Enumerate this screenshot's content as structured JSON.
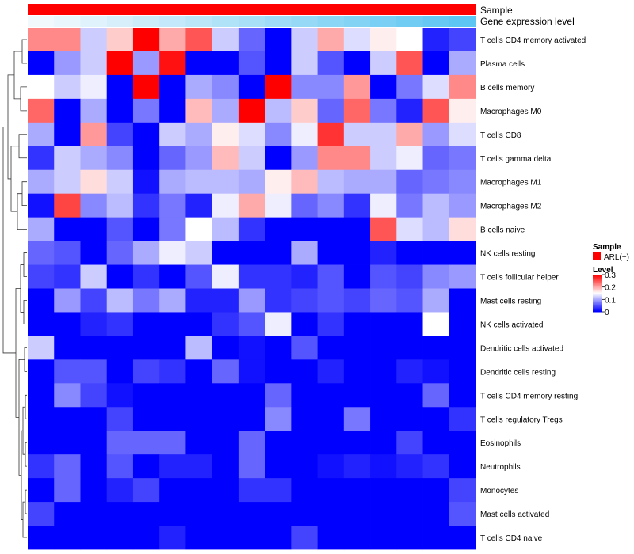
{
  "chart_data": {
    "type": "heatmap",
    "title": "",
    "annotation_tracks": [
      {
        "name": "Sample",
        "color": "#ff0000"
      },
      {
        "name": "Gene expression level",
        "color_start": "#f2f9fd",
        "color_end": "#5ec6f2"
      }
    ],
    "rows": [
      "T cells CD4 memory activated",
      "Plasma cells",
      "B cells memory",
      "Macrophages M0",
      "T cells CD8",
      "T cells gamma delta",
      "Macrophages M1",
      "Macrophages M2",
      "B cells naive",
      "NK cells resting",
      "T cells follicular helper",
      "Mast cells resting",
      "NK cells activated",
      "Dendritic cells activated",
      "Dendritic cells resting",
      "T cells CD4 memory resting",
      "T cells regulatory  Tregs",
      "Eosinophils",
      "Neutrophils",
      "Monocytes",
      "Mast cells activated",
      "T cells CD4 naive"
    ],
    "columns": 17,
    "values": [
      [
        0.22,
        0.22,
        0.12,
        0.18,
        0.3,
        0.2,
        0.25,
        0.12,
        0.06,
        0.0,
        0.12,
        0.2,
        0.13,
        0.16,
        0.15,
        0.02,
        0.04
      ],
      [
        0.0,
        0.09,
        0.12,
        0.3,
        0.09,
        0.29,
        0.0,
        0.0,
        0.05,
        0.0,
        0.12,
        0.05,
        0.0,
        0.12,
        0.25,
        0.0,
        0.1
      ],
      [
        0.15,
        0.12,
        0.14,
        0.0,
        0.3,
        0.0,
        0.1,
        0.08,
        0.0,
        0.3,
        0.08,
        0.08,
        0.21,
        0.0,
        0.07,
        0.13,
        0.22
      ],
      [
        0.24,
        0.0,
        0.1,
        0.0,
        0.07,
        0.0,
        0.19,
        0.1,
        0.3,
        0.11,
        0.18,
        0.06,
        0.24,
        0.07,
        0.02,
        0.25,
        0.16
      ],
      [
        0.1,
        0.0,
        0.21,
        0.04,
        0.0,
        0.12,
        0.1,
        0.16,
        0.13,
        0.08,
        0.14,
        0.27,
        0.12,
        0.12,
        0.2,
        0.09,
        0.13
      ],
      [
        0.03,
        0.12,
        0.1,
        0.08,
        0.0,
        0.06,
        0.09,
        0.19,
        0.12,
        0.0,
        0.09,
        0.22,
        0.22,
        0.12,
        0.14,
        0.06,
        0.07
      ],
      [
        0.1,
        0.12,
        0.17,
        0.12,
        0.01,
        0.1,
        0.11,
        0.11,
        0.1,
        0.16,
        0.19,
        0.11,
        0.1,
        0.1,
        0.06,
        0.07,
        0.08
      ],
      [
        0.01,
        0.26,
        0.08,
        0.11,
        0.03,
        0.07,
        0.02,
        0.14,
        0.2,
        0.14,
        0.06,
        0.08,
        0.03,
        0.14,
        0.07,
        0.11,
        0.09
      ],
      [
        0.1,
        0.0,
        0.0,
        0.05,
        0.0,
        0.07,
        0.15,
        0.11,
        0.03,
        0.0,
        0.0,
        0.0,
        0.0,
        0.25,
        0.13,
        0.11,
        0.17
      ],
      [
        0.06,
        0.05,
        0.0,
        0.06,
        0.1,
        0.14,
        0.12,
        0.0,
        0.0,
        0.0,
        0.1,
        0.0,
        0.0,
        0.02,
        0.0,
        0.0,
        0.0
      ],
      [
        0.04,
        0.03,
        0.12,
        0.0,
        0.03,
        0.0,
        0.05,
        0.14,
        0.03,
        0.03,
        0.02,
        0.05,
        0.0,
        0.05,
        0.04,
        0.08,
        0.09
      ],
      [
        0.0,
        0.09,
        0.04,
        0.11,
        0.07,
        0.1,
        0.02,
        0.02,
        0.09,
        0.03,
        0.04,
        0.05,
        0.04,
        0.06,
        0.05,
        0.1,
        0.0
      ],
      [
        0.0,
        0.0,
        0.02,
        0.03,
        0.0,
        0.0,
        0.0,
        0.03,
        0.05,
        0.14,
        0.0,
        0.03,
        0.0,
        0.0,
        0.0,
        0.15,
        0.0
      ],
      [
        0.12,
        0.0,
        0.0,
        0.0,
        0.0,
        0.0,
        0.11,
        0.0,
        0.01,
        0.0,
        0.05,
        0.0,
        0.0,
        0.0,
        0.0,
        0.0,
        0.0
      ],
      [
        0.0,
        0.05,
        0.05,
        0.0,
        0.04,
        0.03,
        0.0,
        0.06,
        0.01,
        0.0,
        0.0,
        0.02,
        0.0,
        0.0,
        0.02,
        0.01,
        0.0
      ],
      [
        0.0,
        0.08,
        0.04,
        0.01,
        0.0,
        0.0,
        0.0,
        0.0,
        0.0,
        0.06,
        0.0,
        0.0,
        0.0,
        0.0,
        0.0,
        0.06,
        0.0
      ],
      [
        0.0,
        0.0,
        0.0,
        0.04,
        0.0,
        0.0,
        0.0,
        0.0,
        0.0,
        0.08,
        0.0,
        0.0,
        0.07,
        0.0,
        0.0,
        0.0,
        0.03
      ],
      [
        0.0,
        0.0,
        0.0,
        0.06,
        0.06,
        0.06,
        0.0,
        0.0,
        0.06,
        0.0,
        0.0,
        0.0,
        0.0,
        0.0,
        0.04,
        0.0,
        0.0
      ],
      [
        0.03,
        0.06,
        0.0,
        0.05,
        0.0,
        0.02,
        0.02,
        0.0,
        0.06,
        0.0,
        0.0,
        0.01,
        0.02,
        0.01,
        0.02,
        0.03,
        0.0
      ],
      [
        0.0,
        0.06,
        0.0,
        0.02,
        0.04,
        0.0,
        0.0,
        0.0,
        0.03,
        0.03,
        0.0,
        0.0,
        0.0,
        0.0,
        0.0,
        0.0,
        0.04
      ],
      [
        0.04,
        0.0,
        0.0,
        0.0,
        0.0,
        0.0,
        0.0,
        0.0,
        0.0,
        0.0,
        0.0,
        0.0,
        0.0,
        0.0,
        0.0,
        0.0,
        0.05
      ],
      [
        0.0,
        0.0,
        0.0,
        0.0,
        0.0,
        0.02,
        0.0,
        0.0,
        0.0,
        0.0,
        0.04,
        0.0,
        0.0,
        0.0,
        0.0,
        0.0,
        0.0
      ]
    ],
    "color_scale": {
      "min_color": "#0000ff",
      "mid_color": "#ffffff",
      "max_color": "#ff0000",
      "min": 0,
      "mid": 0.15,
      "max": 0.3
    },
    "legend": {
      "sample_title": "Sample",
      "sample_entry": "ARL(+)",
      "level_title": "Level",
      "level_ticks": [
        0.3,
        0.2,
        0.1,
        0
      ]
    },
    "legend_position": "right",
    "dendrogram": "left"
  }
}
